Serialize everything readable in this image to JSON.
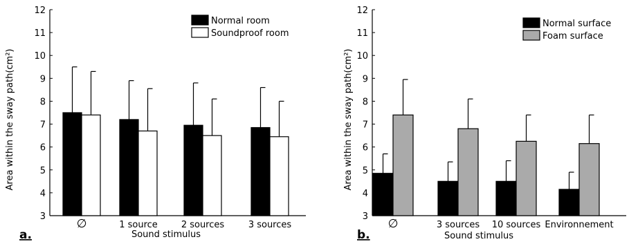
{
  "chart_data": [
    {
      "type": "bar",
      "panel_label": "a.",
      "ylabel": "Area within the sway path(cm²)",
      "xlabel": "Sound stimulus",
      "categories": [
        "∅",
        "1 source",
        "2 sources",
        "3 sources"
      ],
      "ylim": [
        3,
        12
      ],
      "yticks": [
        "3",
        "4",
        "5",
        "6",
        "7",
        "8",
        "9",
        "10",
        "11",
        "12"
      ],
      "legend_position": "top-right",
      "series": [
        {
          "name": "Normal room",
          "color": "#000000",
          "values": [
            7.5,
            7.2,
            6.95,
            6.85
          ],
          "errors": [
            2.0,
            1.7,
            1.85,
            1.75
          ]
        },
        {
          "name": "Soundproof room",
          "color": "#ffffff",
          "values": [
            7.4,
            6.7,
            6.5,
            6.45
          ],
          "errors": [
            1.9,
            1.85,
            1.6,
            1.55
          ]
        }
      ]
    },
    {
      "type": "bar",
      "panel_label": "b.",
      "ylabel": "Area within the sway path(cm²)",
      "xlabel": "Sound stimulus",
      "categories": [
        "∅",
        "3 sources",
        "10 sources",
        "Environnement"
      ],
      "ylim": [
        3,
        12
      ],
      "yticks": [
        "3",
        "4",
        "5",
        "6",
        "7",
        "8",
        "9",
        "10",
        "11",
        "12"
      ],
      "legend_position": "top-right",
      "series": [
        {
          "name": "Normal surface",
          "color": "#000000",
          "values": [
            4.85,
            4.5,
            4.5,
            4.15
          ],
          "errors": [
            0.85,
            0.85,
            0.9,
            0.75
          ]
        },
        {
          "name": "Foam surface",
          "color": "#aaaaaa",
          "values": [
            7.4,
            6.8,
            6.25,
            6.15
          ],
          "errors": [
            1.55,
            1.3,
            1.15,
            1.25
          ]
        }
      ]
    }
  ]
}
